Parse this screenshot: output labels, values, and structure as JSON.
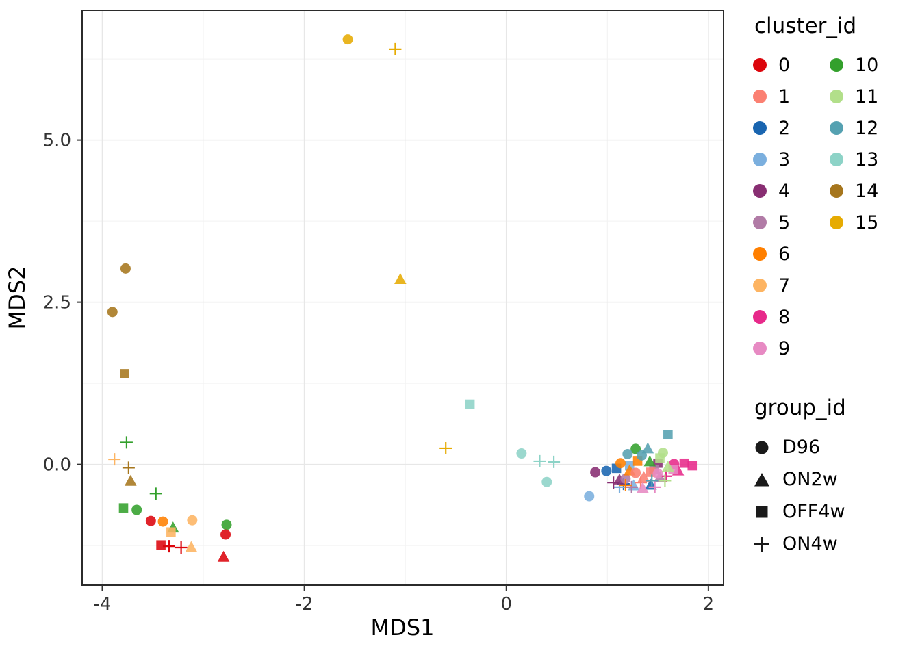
{
  "chart_data": {
    "type": "scatter",
    "title": "",
    "xlabel": "MDS1",
    "ylabel": "MDS2",
    "xlim": [
      -4.2,
      2.15
    ],
    "ylim": [
      -1.86,
      7.0
    ],
    "x_ticks": [
      -4,
      -2,
      0,
      2
    ],
    "x_tick_labels": [
      "-4",
      "-2",
      "0",
      "2"
    ],
    "y_ticks": [
      0,
      2.5,
      5
    ],
    "y_tick_labels": [
      "0.0",
      "2.5",
      "5.0"
    ],
    "x_minor_ticks": [
      -3,
      -1,
      1
    ],
    "y_minor_ticks": [
      -1.25,
      1.25,
      3.75,
      6.25
    ],
    "grid": "major+minor",
    "legend_position": "right",
    "panel_border_color": "#2b2b2b",
    "grid_major_color": "#e7e7e7",
    "grid_minor_color": "#f2f2f2",
    "legends": {
      "cluster": {
        "title": "cluster_id",
        "entries": [
          {
            "label": "0",
            "color": "#DC050C"
          },
          {
            "label": "1",
            "color": "#FB8072"
          },
          {
            "label": "2",
            "color": "#1965B0"
          },
          {
            "label": "3",
            "color": "#7BAFDE"
          },
          {
            "label": "4",
            "color": "#882E72"
          },
          {
            "label": "5",
            "color": "#B17BA6"
          },
          {
            "label": "6",
            "color": "#FF7F00"
          },
          {
            "label": "7",
            "color": "#FDB462"
          },
          {
            "label": "8",
            "color": "#E7298A"
          },
          {
            "label": "9",
            "color": "#E78AC3"
          },
          {
            "label": "10",
            "color": "#33A02C"
          },
          {
            "label": "11",
            "color": "#B2DF8A"
          },
          {
            "label": "12",
            "color": "#55A1B1"
          },
          {
            "label": "13",
            "color": "#8DD3C7"
          },
          {
            "label": "14",
            "color": "#A6761D"
          },
          {
            "label": "15",
            "color": "#E6AB02"
          }
        ]
      },
      "group": {
        "title": "group_id",
        "entries": [
          {
            "label": "D96",
            "shape": "circle"
          },
          {
            "label": "ON2w",
            "shape": "triangle"
          },
          {
            "label": "OFF4w",
            "shape": "square"
          },
          {
            "label": "ON4w",
            "shape": "plus"
          }
        ]
      }
    },
    "points": [
      {
        "x": -1.57,
        "y": 6.55,
        "cluster": "15",
        "group": "D96"
      },
      {
        "x": -1.1,
        "y": 6.4,
        "cluster": "15",
        "group": "ON4w"
      },
      {
        "x": -1.05,
        "y": 2.85,
        "cluster": "15",
        "group": "ON2w"
      },
      {
        "x": -0.6,
        "y": 0.25,
        "cluster": "15",
        "group": "ON4w"
      },
      {
        "x": -3.77,
        "y": 3.02,
        "cluster": "14",
        "group": "D96"
      },
      {
        "x": -3.9,
        "y": 2.35,
        "cluster": "14",
        "group": "D96"
      },
      {
        "x": -3.78,
        "y": 1.4,
        "cluster": "14",
        "group": "OFF4w"
      },
      {
        "x": -3.74,
        "y": -0.05,
        "cluster": "14",
        "group": "ON4w"
      },
      {
        "x": -3.72,
        "y": -0.26,
        "cluster": "14",
        "group": "ON2w"
      },
      {
        "x": -3.76,
        "y": 0.34,
        "cluster": "10",
        "group": "ON4w"
      },
      {
        "x": -3.88,
        "y": 0.08,
        "cluster": "7",
        "group": "ON4w"
      },
      {
        "x": -3.47,
        "y": -0.45,
        "cluster": "10",
        "group": "ON4w"
      },
      {
        "x": -3.79,
        "y": -0.67,
        "cluster": "10",
        "group": "OFF4w"
      },
      {
        "x": -3.66,
        "y": -0.7,
        "cluster": "10",
        "group": "D96"
      },
      {
        "x": -3.52,
        "y": -0.87,
        "cluster": "0",
        "group": "D96"
      },
      {
        "x": -3.4,
        "y": -0.88,
        "cluster": "6",
        "group": "D96"
      },
      {
        "x": -3.3,
        "y": -0.98,
        "cluster": "10",
        "group": "ON2w"
      },
      {
        "x": -3.32,
        "y": -1.04,
        "cluster": "7",
        "group": "OFF4w"
      },
      {
        "x": -3.11,
        "y": -0.86,
        "cluster": "7",
        "group": "D96"
      },
      {
        "x": -3.42,
        "y": -1.24,
        "cluster": "0",
        "group": "OFF4w"
      },
      {
        "x": -3.34,
        "y": -1.26,
        "cluster": "0",
        "group": "ON4w"
      },
      {
        "x": -3.22,
        "y": -1.28,
        "cluster": "0",
        "group": "ON4w"
      },
      {
        "x": -3.12,
        "y": -1.28,
        "cluster": "7",
        "group": "ON2w"
      },
      {
        "x": -2.77,
        "y": -0.93,
        "cluster": "10",
        "group": "D96"
      },
      {
        "x": -2.78,
        "y": -1.08,
        "cluster": "0",
        "group": "D96"
      },
      {
        "x": -2.8,
        "y": -1.43,
        "cluster": "0",
        "group": "ON2w"
      },
      {
        "x": -0.36,
        "y": 0.93,
        "cluster": "13",
        "group": "OFF4w"
      },
      {
        "x": 0.15,
        "y": 0.17,
        "cluster": "13",
        "group": "D96"
      },
      {
        "x": 0.33,
        "y": 0.05,
        "cluster": "13",
        "group": "ON4w"
      },
      {
        "x": 0.47,
        "y": 0.04,
        "cluster": "13",
        "group": "ON4w"
      },
      {
        "x": 0.4,
        "y": -0.27,
        "cluster": "13",
        "group": "D96"
      },
      {
        "x": 0.82,
        "y": -0.49,
        "cluster": "3",
        "group": "D96"
      },
      {
        "x": 0.88,
        "y": -0.12,
        "cluster": "4",
        "group": "D96"
      },
      {
        "x": 0.99,
        "y": -0.1,
        "cluster": "2",
        "group": "D96"
      },
      {
        "x": 1.09,
        "y": -0.06,
        "cluster": "2",
        "group": "OFF4w"
      },
      {
        "x": 1.43,
        "y": -0.32,
        "cluster": "2",
        "group": "ON2w"
      },
      {
        "x": 1.16,
        "y": -0.3,
        "cluster": "2",
        "group": "ON4w"
      },
      {
        "x": 1.26,
        "y": -0.33,
        "cluster": "3",
        "group": "ON2w"
      },
      {
        "x": 1.22,
        "y": -0.02,
        "cluster": "3",
        "group": "OFF4w"
      },
      {
        "x": 1.12,
        "y": -0.35,
        "cluster": "3",
        "group": "ON4w"
      },
      {
        "x": 1.12,
        "y": -0.24,
        "cluster": "4",
        "group": "ON2w"
      },
      {
        "x": 1.5,
        "y": 0.02,
        "cluster": "4",
        "group": "OFF4w"
      },
      {
        "x": 1.06,
        "y": -0.28,
        "cluster": "4",
        "group": "ON4w"
      },
      {
        "x": 1.18,
        "y": -0.22,
        "cluster": "5",
        "group": "D96"
      },
      {
        "x": 1.52,
        "y": -0.2,
        "cluster": "5",
        "group": "ON2w"
      },
      {
        "x": 1.46,
        "y": -0.08,
        "cluster": "5",
        "group": "OFF4w"
      },
      {
        "x": 1.24,
        "y": -0.35,
        "cluster": "5",
        "group": "ON4w"
      },
      {
        "x": 1.13,
        "y": 0.02,
        "cluster": "6",
        "group": "D96"
      },
      {
        "x": 1.22,
        "y": -0.1,
        "cluster": "6",
        "group": "ON2w"
      },
      {
        "x": 1.3,
        "y": 0.05,
        "cluster": "6",
        "group": "OFF4w"
      },
      {
        "x": 1.18,
        "y": -0.32,
        "cluster": "6",
        "group": "ON4w"
      },
      {
        "x": 1.28,
        "y": -0.13,
        "cluster": "1",
        "group": "D96"
      },
      {
        "x": 1.36,
        "y": -0.2,
        "cluster": "1",
        "group": "ON2w"
      },
      {
        "x": 1.43,
        "y": -0.12,
        "cluster": "1",
        "group": "OFF4w"
      },
      {
        "x": 1.33,
        "y": -0.28,
        "cluster": "1",
        "group": "ON4w"
      },
      {
        "x": 1.66,
        "y": 0.01,
        "cluster": "8",
        "group": "D96"
      },
      {
        "x": 1.7,
        "y": -0.1,
        "cluster": "8",
        "group": "ON2w"
      },
      {
        "x": 1.76,
        "y": 0.02,
        "cluster": "8",
        "group": "OFF4w"
      },
      {
        "x": 1.84,
        "y": -0.02,
        "cluster": "8",
        "group": "OFF4w"
      },
      {
        "x": 1.58,
        "y": -0.18,
        "cluster": "8",
        "group": "ON4w"
      },
      {
        "x": 1.5,
        "y": -0.14,
        "cluster": "9",
        "group": "D96"
      },
      {
        "x": 1.35,
        "y": -0.37,
        "cluster": "9",
        "group": "ON2w"
      },
      {
        "x": 1.65,
        "y": -0.08,
        "cluster": "9",
        "group": "OFF4w"
      },
      {
        "x": 1.47,
        "y": -0.35,
        "cluster": "9",
        "group": "ON4w"
      },
      {
        "x": 1.28,
        "y": 0.24,
        "cluster": "10",
        "group": "D96"
      },
      {
        "x": 1.42,
        "y": 0.04,
        "cluster": "10",
        "group": "ON2w"
      },
      {
        "x": 1.55,
        "y": 0.18,
        "cluster": "11",
        "group": "D96"
      },
      {
        "x": 1.6,
        "y": -0.04,
        "cluster": "11",
        "group": "ON2w"
      },
      {
        "x": 1.52,
        "y": 0.1,
        "cluster": "11",
        "group": "OFF4w"
      },
      {
        "x": 1.57,
        "y": -0.25,
        "cluster": "11",
        "group": "ON4w"
      },
      {
        "x": 1.34,
        "y": 0.14,
        "cluster": "12",
        "group": "D96"
      },
      {
        "x": 1.2,
        "y": 0.16,
        "cluster": "12",
        "group": "D96"
      },
      {
        "x": 1.4,
        "y": 0.24,
        "cluster": "12",
        "group": "ON2w"
      },
      {
        "x": 1.6,
        "y": 0.46,
        "cluster": "12",
        "group": "OFF4w"
      },
      {
        "x": 1.44,
        "y": -0.25,
        "cluster": "12",
        "group": "ON4w"
      }
    ]
  }
}
